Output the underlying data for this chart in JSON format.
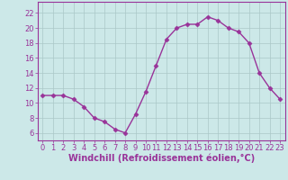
{
  "x": [
    0,
    1,
    2,
    3,
    4,
    5,
    6,
    7,
    8,
    9,
    10,
    11,
    12,
    13,
    14,
    15,
    16,
    17,
    18,
    19,
    20,
    21,
    22,
    23
  ],
  "y": [
    11.0,
    11.0,
    11.0,
    10.5,
    9.5,
    8.0,
    7.5,
    6.5,
    6.0,
    8.5,
    11.5,
    15.0,
    18.5,
    20.0,
    20.5,
    20.5,
    21.5,
    21.0,
    20.0,
    19.5,
    18.0,
    14.0,
    12.0,
    10.5
  ],
  "line_color": "#993399",
  "marker": "D",
  "markersize": 2.5,
  "linewidth": 1.0,
  "xlabel": "Windchill (Refroidissement éolien,°C)",
  "xlim": [
    -0.5,
    23.5
  ],
  "ylim": [
    5.0,
    23.5
  ],
  "yticks": [
    6,
    8,
    10,
    12,
    14,
    16,
    18,
    20,
    22
  ],
  "xticks": [
    0,
    1,
    2,
    3,
    4,
    5,
    6,
    7,
    8,
    9,
    10,
    11,
    12,
    13,
    14,
    15,
    16,
    17,
    18,
    19,
    20,
    21,
    22,
    23
  ],
  "bg_color": "#cce8e8",
  "grid_color": "#aac8c8",
  "tick_color": "#993399",
  "xlabel_fontsize": 7.0,
  "tick_fontsize": 6.0,
  "spine_color": "#993399"
}
